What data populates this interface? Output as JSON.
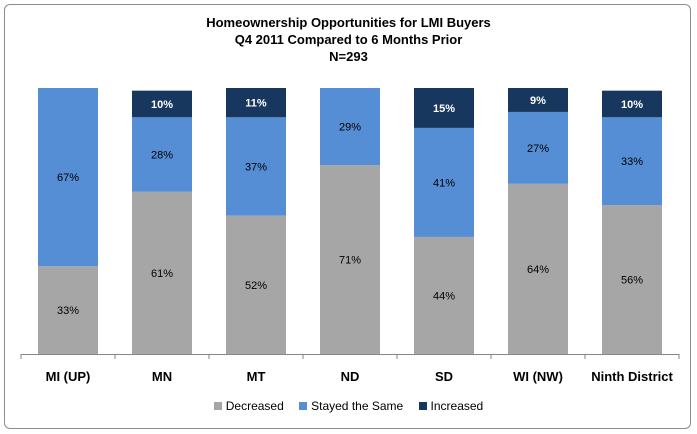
{
  "chart_data": {
    "type": "bar",
    "stacked": true,
    "title_lines": [
      "Homeownership Opportunities for LMI Buyers",
      "Q4 2011 Compared to 6 Months Prior",
      "N=293"
    ],
    "categories": [
      "MI (UP)",
      "MN",
      "MT",
      "ND",
      "SD",
      "WI (NW)",
      "Ninth District"
    ],
    "series": [
      {
        "name": "Decreased",
        "color": "#a6a6a6",
        "text_color": "#000000",
        "values": [
          33,
          61,
          52,
          71,
          44,
          64,
          56
        ]
      },
      {
        "name": "Stayed the Same",
        "color": "#558ed5",
        "text_color": "#000000",
        "values": [
          67,
          28,
          37,
          29,
          41,
          27,
          33
        ]
      },
      {
        "name": "Increased",
        "color": "#17375e",
        "text_color": "#ffffff",
        "values": [
          0,
          10,
          11,
          0,
          15,
          9,
          10
        ]
      }
    ],
    "value_suffix": "%",
    "ylim": [
      0,
      100
    ],
    "grid": false,
    "legend_position": "bottom",
    "xlabel": "",
    "ylabel": ""
  }
}
